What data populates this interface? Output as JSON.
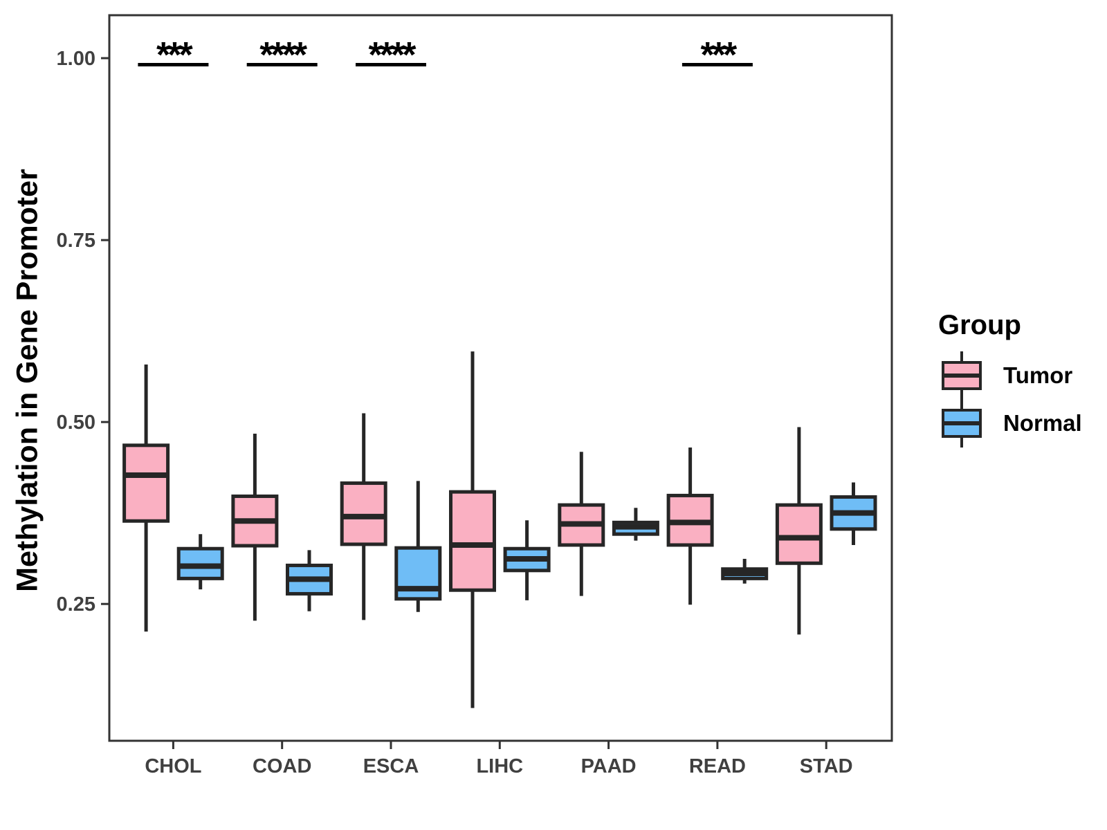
{
  "colors": {
    "tumor_fill": "#FAB0C2",
    "normal_fill": "#6FBDF6",
    "box_outline": "#262626",
    "axis_text": "#404040",
    "panel_border": "#333333",
    "annotation_ink": "#000000",
    "background": "#FFFFFF"
  },
  "chart_data": {
    "type": "boxplot",
    "title": "",
    "xlabel": "",
    "ylabel": "Methylation in Gene Promoter",
    "categories": [
      "CHOL",
      "COAD",
      "ESCA",
      "LIHC",
      "PAAD",
      "READ",
      "STAD"
    ],
    "y_ticks": [
      0.25,
      0.5,
      0.75,
      1.0
    ],
    "y_tick_labels": [
      "0.25",
      "0.50",
      "0.75",
      "1.00"
    ],
    "ylim": [
      0.062,
      1.059
    ],
    "grid": false,
    "legend_title": "Group",
    "legend_position": "right",
    "series": [
      {
        "name": "Tumor",
        "color": "#FAB0C2",
        "boxes": [
          {
            "category": "CHOL",
            "whisker_low": 0.212,
            "q1": 0.364,
            "median": 0.427,
            "q3": 0.468,
            "whisker_high": 0.579
          },
          {
            "category": "COAD",
            "whisker_low": 0.227,
            "q1": 0.33,
            "median": 0.364,
            "q3": 0.398,
            "whisker_high": 0.484
          },
          {
            "category": "ESCA",
            "whisker_low": 0.228,
            "q1": 0.332,
            "median": 0.37,
            "q3": 0.416,
            "whisker_high": 0.512
          },
          {
            "category": "LIHC",
            "whisker_low": 0.107,
            "q1": 0.269,
            "median": 0.331,
            "q3": 0.404,
            "whisker_high": 0.597
          },
          {
            "category": "PAAD",
            "whisker_low": 0.261,
            "q1": 0.331,
            "median": 0.36,
            "q3": 0.386,
            "whisker_high": 0.459
          },
          {
            "category": "READ",
            "whisker_low": 0.249,
            "q1": 0.331,
            "median": 0.362,
            "q3": 0.399,
            "whisker_high": 0.465
          },
          {
            "category": "STAD",
            "whisker_low": 0.208,
            "q1": 0.306,
            "median": 0.341,
            "q3": 0.386,
            "whisker_high": 0.493
          }
        ]
      },
      {
        "name": "Normal",
        "color": "#6FBDF6",
        "boxes": [
          {
            "category": "CHOL",
            "whisker_low": 0.27,
            "q1": 0.285,
            "median": 0.302,
            "q3": 0.326,
            "whisker_high": 0.346
          },
          {
            "category": "COAD",
            "whisker_low": 0.24,
            "q1": 0.264,
            "median": 0.284,
            "q3": 0.303,
            "whisker_high": 0.324
          },
          {
            "category": "ESCA",
            "whisker_low": 0.239,
            "q1": 0.257,
            "median": 0.271,
            "q3": 0.327,
            "whisker_high": 0.419
          },
          {
            "category": "LIHC",
            "whisker_low": 0.255,
            "q1": 0.296,
            "median": 0.312,
            "q3": 0.326,
            "whisker_high": 0.365
          },
          {
            "category": "PAAD",
            "whisker_low": 0.337,
            "q1": 0.346,
            "median": 0.356,
            "q3": 0.362,
            "whisker_high": 0.382
          },
          {
            "category": "READ",
            "whisker_low": 0.278,
            "q1": 0.285,
            "median": 0.292,
            "q3": 0.298,
            "whisker_high": 0.312
          },
          {
            "category": "STAD",
            "whisker_low": 0.331,
            "q1": 0.353,
            "median": 0.375,
            "q3": 0.397,
            "whisker_high": 0.417
          }
        ]
      }
    ],
    "annotations": [
      {
        "category": "CHOL",
        "label": "***"
      },
      {
        "category": "COAD",
        "label": "****"
      },
      {
        "category": "ESCA",
        "label": "****"
      },
      {
        "category": "READ",
        "label": "***"
      }
    ]
  }
}
